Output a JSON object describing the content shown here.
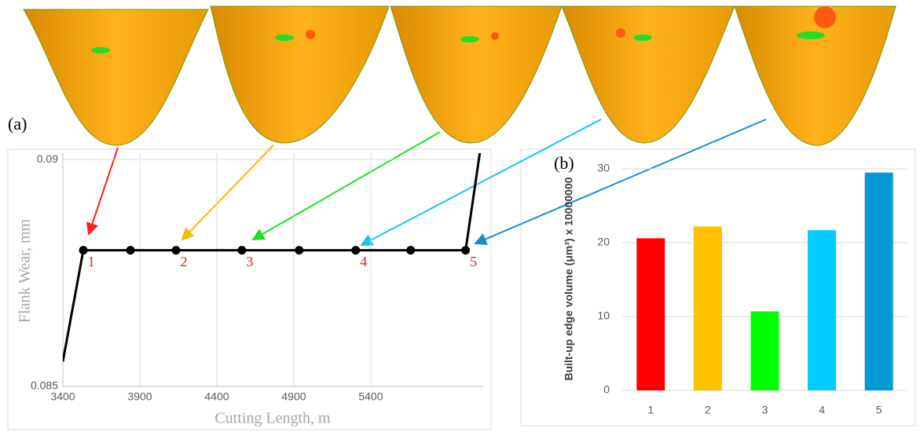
{
  "chart_data": [
    {
      "type": "line",
      "panel_label": "(a)",
      "x_label": "Cutting Length, m",
      "y_label": "Flank Wear, mm",
      "x": [
        3400,
        3533,
        3839,
        4135,
        4563,
        4935,
        5302,
        5659,
        6016,
        6108
      ],
      "series": [
        {
          "color": "#000000",
          "values": [
            0.08555,
            0.088,
            0.088,
            0.088,
            0.088,
            0.088,
            0.088,
            0.088,
            0.088,
            0.09014
          ],
          "markers": [
            false,
            true,
            true,
            true,
            true,
            true,
            true,
            true,
            true,
            false
          ],
          "point_labels": [
            null,
            "1",
            null,
            "2",
            "3",
            null,
            "4",
            null,
            "5",
            null
          ],
          "point_label_color": "#e02020"
        }
      ],
      "xlim": [
        3400,
        6130
      ],
      "xticks": [
        3400,
        3900,
        4400,
        4900,
        5400
      ],
      "ylim": [
        0.085,
        0.09014
      ],
      "yticks": [
        0.085,
        0.09
      ],
      "grid": true
    },
    {
      "type": "bar",
      "panel_label": "(b)",
      "y_label": "Built-up edge volume (μm³) x 10000000",
      "categories": [
        "1",
        "2",
        "3",
        "4",
        "5"
      ],
      "values": [
        20.6,
        22.2,
        10.7,
        21.7,
        29.5
      ],
      "colors": [
        "#ff0000",
        "#ffc000",
        "#00ff00",
        "#00ccff",
        "#0099d4"
      ],
      "ylim": [
        0,
        31.6
      ],
      "yticks": [
        0,
        10,
        20,
        30
      ],
      "grid": true
    }
  ]
}
